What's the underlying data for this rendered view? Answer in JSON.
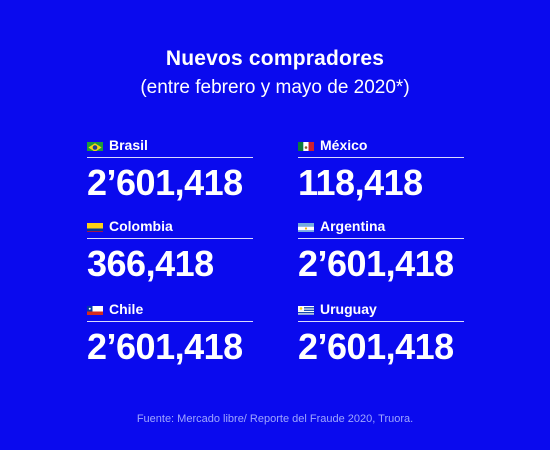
{
  "header": {
    "title": "Nuevos compradores",
    "subtitle": "(entre febrero y mayo de 2020*)"
  },
  "countries": [
    {
      "name": "Brasil",
      "value": "2’601,418",
      "flag_icon": "brazil-flag-icon"
    },
    {
      "name": "México",
      "value": "118,418",
      "flag_icon": "mexico-flag-icon"
    },
    {
      "name": "Colombia",
      "value": "366,418",
      "flag_icon": "colombia-flag-icon"
    },
    {
      "name": "Argentina",
      "value": "2’601,418",
      "flag_icon": "argentina-flag-icon"
    },
    {
      "name": "Chile",
      "value": "2’601,418",
      "flag_icon": "chile-flag-icon"
    },
    {
      "name": "Uruguay",
      "value": "2’601,418",
      "flag_icon": "uruguay-flag-icon"
    }
  ],
  "footer": {
    "source": "Fuente: Mercado libre/ Reporte del Fraude 2020, Truora."
  },
  "colors": {
    "background": "#0a0aee",
    "text": "#ffffff",
    "footer_text": "#9fa6ff"
  }
}
